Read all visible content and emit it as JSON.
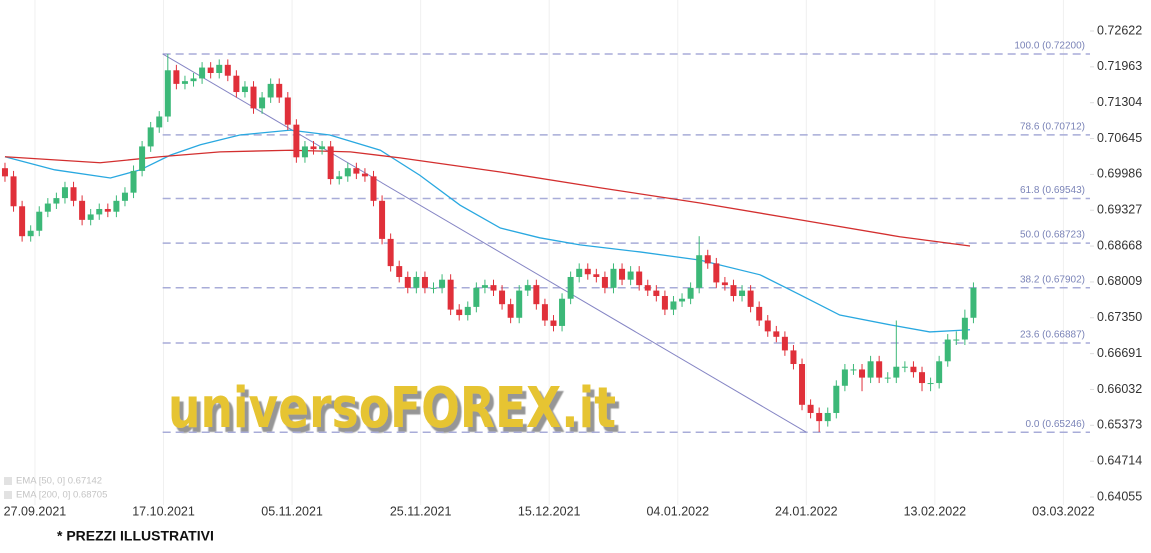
{
  "chart_data": {
    "type": "candlestick",
    "xlim": [
      -0.58,
      126.6
    ],
    "ylim": [
      0.63908,
      0.73192
    ],
    "xticks": [
      {
        "value": 3.5,
        "label": "27.09.2021"
      },
      {
        "value": 18.5,
        "label": "17.10.2021"
      },
      {
        "value": 33.5,
        "label": "05.11.2021"
      },
      {
        "value": 48.5,
        "label": "25.11.2021"
      },
      {
        "value": 63.5,
        "label": "15.12.2021"
      },
      {
        "value": 78.5,
        "label": "04.01.2022"
      },
      {
        "value": 93.5,
        "label": "24.01.2022"
      },
      {
        "value": 108.5,
        "label": "13.02.2022"
      },
      {
        "value": 123.5,
        "label": "03.03.2022"
      }
    ],
    "yticks": [
      0.72622,
      0.71963,
      0.71304,
      0.70645,
      0.69986,
      0.69327,
      0.68668,
      0.68009,
      {
        "value": 0.6735,
        "label": "0.67350"
      },
      0.66691,
      0.66032,
      0.65373,
      0.64714,
      0.64055
    ],
    "grid": "x",
    "up_color": "#3cb878",
    "down_color": "#e0303a",
    "open": [
      0.701,
      0.6995,
      0.694,
      0.6885,
      0.6895,
      0.693,
      0.6945,
      0.6955,
      0.6975,
      0.695,
      0.6915,
      0.6925,
      0.6935,
      0.693,
      0.695,
      0.6965,
      0.7005,
      0.705,
      0.7085,
      0.7105,
      0.719,
      0.7165,
      0.717,
      0.7175,
      0.7195,
      0.7185,
      0.72,
      0.718,
      0.715,
      0.716,
      0.712,
      0.714,
      0.7165,
      0.714,
      0.709,
      0.703,
      0.705,
      0.7045,
      0.705,
      0.699,
      0.6995,
      0.701,
      0.7,
      0.6995,
      0.695,
      0.688,
      0.683,
      0.681,
      0.679,
      0.681,
      0.679,
      0.679,
      0.6805,
      0.675,
      0.674,
      0.6755,
      0.679,
      0.6795,
      0.6785,
      0.676,
      0.6735,
      0.6785,
      0.6795,
      0.676,
      0.673,
      0.672,
      0.677,
      0.681,
      0.6825,
      0.6815,
      0.681,
      0.679,
      0.6825,
      0.6805,
      0.682,
      0.6795,
      0.6785,
      0.6775,
      0.675,
      0.6765,
      0.677,
      0.679,
      0.685,
      0.6835,
      0.68,
      0.6795,
      0.6775,
      0.6785,
      0.6755,
      0.673,
      0.671,
      0.67,
      0.6675,
      0.665,
      0.6575,
      0.656,
      0.6545,
      0.656,
      0.661,
      0.664,
      0.664,
      0.6625,
      0.6655,
      0.6625,
      0.6625,
      0.6645,
      0.6645,
      0.6635,
      0.6615,
      0.6615,
      0.6655,
      0.6695,
      0.6695,
      0.6735
    ],
    "high": [
      0.702,
      0.7005,
      0.695,
      0.6905,
      0.694,
      0.6955,
      0.6965,
      0.6985,
      0.6985,
      0.696,
      0.6935,
      0.6945,
      0.6945,
      0.696,
      0.6975,
      0.7015,
      0.706,
      0.7095,
      0.7115,
      0.722,
      0.72,
      0.718,
      0.7185,
      0.7205,
      0.7205,
      0.721,
      0.721,
      0.719,
      0.717,
      0.717,
      0.715,
      0.7175,
      0.7175,
      0.715,
      0.71,
      0.706,
      0.706,
      0.706,
      0.706,
      0.7005,
      0.702,
      0.702,
      0.701,
      0.7005,
      0.696,
      0.689,
      0.684,
      0.682,
      0.682,
      0.682,
      0.68,
      0.6815,
      0.6815,
      0.676,
      0.6765,
      0.68,
      0.6805,
      0.6805,
      0.6795,
      0.677,
      0.6795,
      0.6805,
      0.6805,
      0.677,
      0.674,
      0.678,
      0.682,
      0.6835,
      0.6835,
      0.6825,
      0.682,
      0.6835,
      0.6835,
      0.683,
      0.683,
      0.6805,
      0.6795,
      0.6785,
      0.6775,
      0.678,
      0.68,
      0.6885,
      0.686,
      0.6845,
      0.681,
      0.6805,
      0.6795,
      0.6795,
      0.6765,
      0.674,
      0.672,
      0.671,
      0.6685,
      0.666,
      0.6585,
      0.657,
      0.657,
      0.662,
      0.665,
      0.665,
      0.665,
      0.6665,
      0.6665,
      0.6635,
      0.673,
      0.6655,
      0.6655,
      0.6645,
      0.6625,
      0.6665,
      0.6705,
      0.671,
      0.675,
      0.68
    ],
    "low": [
      0.6985,
      0.693,
      0.6875,
      0.6875,
      0.6885,
      0.692,
      0.6935,
      0.6945,
      0.694,
      0.6905,
      0.6905,
      0.6915,
      0.692,
      0.692,
      0.694,
      0.6955,
      0.6995,
      0.704,
      0.7075,
      0.7095,
      0.7155,
      0.7155,
      0.716,
      0.7165,
      0.7175,
      0.7175,
      0.717,
      0.714,
      0.714,
      0.711,
      0.711,
      0.713,
      0.713,
      0.708,
      0.702,
      0.702,
      0.7035,
      0.7035,
      0.698,
      0.698,
      0.6985,
      0.699,
      0.6985,
      0.694,
      0.687,
      0.682,
      0.68,
      0.678,
      0.678,
      0.678,
      0.678,
      0.678,
      0.674,
      0.673,
      0.673,
      0.6745,
      0.678,
      0.6775,
      0.675,
      0.6725,
      0.6725,
      0.6775,
      0.675,
      0.672,
      0.671,
      0.671,
      0.676,
      0.68,
      0.6805,
      0.68,
      0.678,
      0.678,
      0.6795,
      0.6795,
      0.6785,
      0.6775,
      0.6765,
      0.674,
      0.674,
      0.6755,
      0.676,
      0.678,
      0.6825,
      0.679,
      0.6785,
      0.6765,
      0.6765,
      0.6745,
      0.672,
      0.67,
      0.669,
      0.6665,
      0.664,
      0.6565,
      0.655,
      0.6525,
      0.6535,
      0.655,
      0.66,
      0.663,
      0.66,
      0.6615,
      0.6615,
      0.6615,
      0.6615,
      0.6635,
      0.6625,
      0.66,
      0.66,
      0.6605,
      0.6645,
      0.6685,
      0.6685,
      0.6725
    ],
    "close": [
      0.6995,
      0.694,
      0.6885,
      0.6895,
      0.693,
      0.6945,
      0.6955,
      0.6975,
      0.695,
      0.6915,
      0.6925,
      0.6935,
      0.693,
      0.695,
      0.6965,
      0.7005,
      0.705,
      0.7085,
      0.7105,
      0.719,
      0.7165,
      0.717,
      0.7175,
      0.7195,
      0.7185,
      0.72,
      0.718,
      0.715,
      0.716,
      0.712,
      0.714,
      0.7165,
      0.714,
      0.709,
      0.703,
      0.705,
      0.7045,
      0.705,
      0.699,
      0.6995,
      0.701,
      0.7,
      0.6995,
      0.695,
      0.688,
      0.683,
      0.681,
      0.679,
      0.681,
      0.679,
      0.679,
      0.6805,
      0.675,
      0.674,
      0.6755,
      0.679,
      0.6795,
      0.6785,
      0.676,
      0.6735,
      0.6785,
      0.6795,
      0.676,
      0.673,
      0.672,
      0.677,
      0.681,
      0.6825,
      0.6815,
      0.681,
      0.679,
      0.6825,
      0.6805,
      0.682,
      0.6795,
      0.6785,
      0.6775,
      0.675,
      0.6765,
      0.677,
      0.679,
      0.685,
      0.6835,
      0.68,
      0.6795,
      0.6775,
      0.6785,
      0.6755,
      0.673,
      0.671,
      0.67,
      0.6675,
      0.665,
      0.6575,
      0.656,
      0.6545,
      0.656,
      0.661,
      0.664,
      0.664,
      0.6625,
      0.6655,
      0.6625,
      0.6625,
      0.6645,
      0.6645,
      0.6635,
      0.6615,
      0.6615,
      0.6655,
      0.6695,
      0.6695,
      0.6735,
      0.679
    ],
    "series": [
      {
        "name": "EMA [50, 0] 0.67142",
        "color": "#29a8e0",
        "x": [
          0,
          5.8,
          12.3,
          15.8,
          19.3,
          22.8,
          27.4,
          33.3,
          37.9,
          43.8,
          48.4,
          53.1,
          57.8,
          62.4,
          67.1,
          74.1,
          81.1,
          88.1,
          92.8,
          97.4,
          103.3,
          107.9,
          112.6
        ],
        "values": [
          0.7031,
          0.7007,
          0.6992,
          0.7007,
          0.7034,
          0.7053,
          0.7071,
          0.708,
          0.7071,
          0.7043,
          0.6997,
          0.6942,
          0.69,
          0.6882,
          0.6869,
          0.6856,
          0.6841,
          0.6814,
          0.6777,
          0.674,
          0.6722,
          0.6709,
          0.6713
        ]
      },
      {
        "name": "EMA [200, 0] 0.68705",
        "color": "#d32f2f",
        "x": [
          0,
          11.1,
          18.1,
          25.1,
          33.3,
          40.3,
          46.1,
          57.8,
          69.4,
          81.1,
          92.8,
          104.4,
          112.6
        ],
        "values": [
          0.7031,
          0.702,
          0.7031,
          0.704,
          0.7043,
          0.704,
          0.7029,
          0.7003,
          0.6974,
          0.6946,
          0.6915,
          0.6884,
          0.6867
        ]
      }
    ],
    "fib_levels": [
      {
        "label": "100.0 (0.72200)",
        "value": 0.722
      },
      {
        "label": "78.6 (0.70712)",
        "value": 0.70712
      },
      {
        "label": "61.8 (0.69543)",
        "value": 0.69543
      },
      {
        "label": "50.0 (0.68723)",
        "value": 0.68723
      },
      {
        "label": "38.2 (0.67902)",
        "value": 0.67902
      },
      {
        "label": "23.6 (0.66887)",
        "value": 0.66887
      },
      {
        "label": "0.0 (0.65246)",
        "value": 0.65246
      }
    ],
    "fib_start": 18.4,
    "trendline": {
      "x": [
        18.4,
        93.5
      ],
      "values": [
        0.722,
        0.65246
      ]
    },
    "watermark": "universoFOREX.it",
    "footnote": "* PREZZI ILLUSTRATIVI"
  }
}
